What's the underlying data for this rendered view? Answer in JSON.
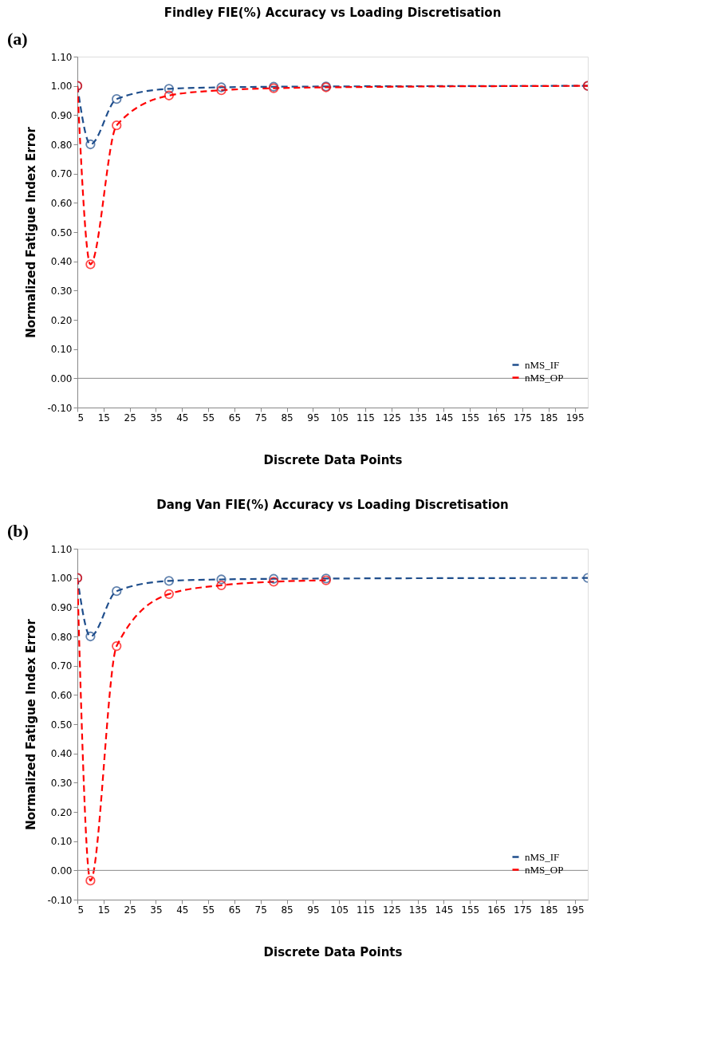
{
  "chart_data": [
    {
      "type": "line",
      "title": "Findley FIE(%) Accuracy vs Loading Discretisation",
      "xlabel": "Discrete Data Points",
      "ylabel": "Normalized Fatigue Index Error",
      "annotations": [
        "(a)"
      ],
      "x": [
        5,
        10,
        20,
        40,
        60,
        80,
        100,
        200
      ],
      "series": [
        {
          "name": "nMS_IF",
          "color": "#1f4e8c",
          "line_style": "dashed",
          "values": [
            1.0,
            0.8,
            0.955,
            0.99,
            0.995,
            0.997,
            0.998,
            1.0
          ]
        },
        {
          "name": "nMS_OP",
          "color": "#ff0000",
          "line_style": "dashed",
          "values": [
            1.0,
            0.39,
            0.865,
            0.967,
            0.985,
            0.992,
            0.995,
            1.0
          ]
        }
      ],
      "xlim": [
        5,
        200
      ],
      "xticks": [
        5,
        15,
        25,
        35,
        45,
        55,
        65,
        75,
        85,
        95,
        105,
        115,
        125,
        135,
        145,
        155,
        165,
        175,
        185,
        195
      ],
      "ylim": [
        -0.1,
        1.1
      ],
      "yticks": [
        {
          "value": -0.1,
          "label": "-0.10"
        },
        {
          "value": 0,
          "label": "0.00"
        },
        {
          "value": 0.1,
          "label": "0.10"
        },
        {
          "value": 0.2,
          "label": "0.20"
        },
        {
          "value": 0.3,
          "label": "0.30"
        },
        {
          "value": 0.4,
          "label": "0.40"
        },
        {
          "value": 0.5,
          "label": "0.50"
        },
        {
          "value": 0.6,
          "label": "0.60"
        },
        {
          "value": 0.7,
          "label": "0.70"
        },
        {
          "value": 0.8,
          "label": "0.80"
        },
        {
          "value": 0.9,
          "label": "0.90"
        },
        {
          "value": 1.0,
          "label": "1.00"
        },
        {
          "value": 1.1,
          "label": "1.10"
        }
      ],
      "ref_lines": [
        {
          "axis": "y",
          "value": 0
        }
      ],
      "grid": false,
      "legend": "bottom right",
      "marker": "circle"
    },
    {
      "type": "line",
      "title": "Dang Van FIE(%) Accuracy vs Loading Discretisation",
      "xlabel": "Discrete Data Points",
      "ylabel": "Normalized Fatigue Index Error",
      "annotations": [
        "(b)"
      ],
      "x": [
        5,
        10,
        20,
        40,
        60,
        80,
        100,
        200
      ],
      "series": [
        {
          "name": "nMS_IF",
          "color": "#1f4e8c",
          "line_style": "dashed",
          "values": [
            1.0,
            0.8,
            0.955,
            0.99,
            0.995,
            0.997,
            0.998,
            1.0
          ]
        },
        {
          "name": "nMS_OP",
          "color": "#ff0000",
          "line_style": "dashed",
          "values": [
            1.0,
            -0.035,
            0.767,
            0.945,
            0.975,
            0.987,
            0.992,
            null
          ]
        }
      ],
      "xlim": [
        5,
        200
      ],
      "xticks": [
        5,
        15,
        25,
        35,
        45,
        55,
        65,
        75,
        85,
        95,
        105,
        115,
        125,
        135,
        145,
        155,
        165,
        175,
        185,
        195
      ],
      "ylim": [
        -0.1,
        1.1
      ],
      "yticks": [
        {
          "value": -0.1,
          "label": "-0.10"
        },
        {
          "value": 0,
          "label": "0.00"
        },
        {
          "value": 0.1,
          "label": "0.10"
        },
        {
          "value": 0.2,
          "label": "0.20"
        },
        {
          "value": 0.3,
          "label": "0.30"
        },
        {
          "value": 0.4,
          "label": "0.40"
        },
        {
          "value": 0.5,
          "label": "0.50"
        },
        {
          "value": 0.6,
          "label": "0.60"
        },
        {
          "value": 0.7,
          "label": "0.70"
        },
        {
          "value": 0.8,
          "label": "0.80"
        },
        {
          "value": 0.9,
          "label": "0.90"
        },
        {
          "value": 1.0,
          "label": "1.00"
        },
        {
          "value": 1.1,
          "label": "1.10"
        }
      ],
      "ref_lines": [
        {
          "axis": "y",
          "value": 0
        }
      ],
      "grid": false,
      "legend": "bottom right",
      "marker": "circle"
    }
  ]
}
